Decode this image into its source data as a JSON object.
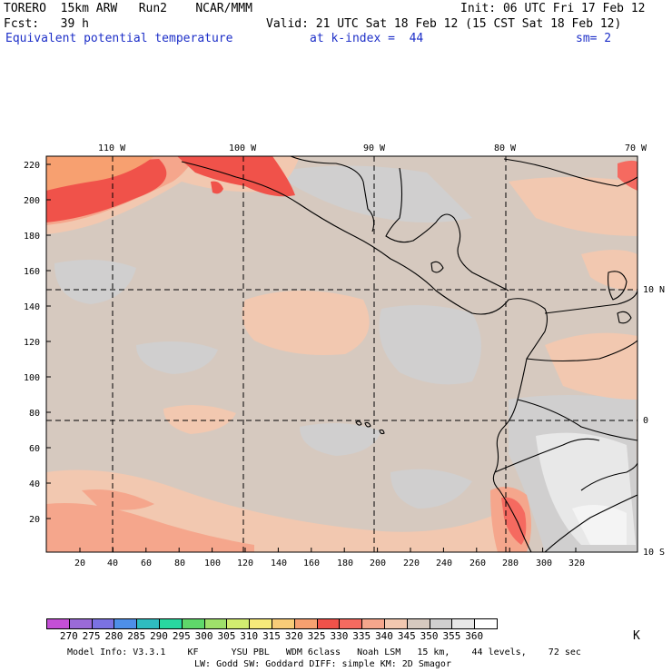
{
  "header": {
    "line1_left": "TORERO  15km ARW   Run2    NCAR/MMM",
    "line1_right": "Init: 06 UTC Fri 17 Feb 12",
    "line2_left": "Fcst:   39 h",
    "line2_right": "Valid: 21 UTC Sat 18 Feb 12 (15 CST Sat 18 Feb 12)",
    "field": "Equivalent potential temperature",
    "level": "at k-index =  44",
    "smoothing": "sm= 2"
  },
  "map": {
    "lon_labels": [
      "110 W",
      "100 W",
      "90 W",
      "80 W",
      "70 W"
    ],
    "lat_labels": [
      "10 N",
      "0",
      "10 S"
    ],
    "y_ticks": [
      "220",
      "200",
      "180",
      "160",
      "140",
      "120",
      "100",
      "80",
      "60",
      "40",
      "20"
    ],
    "x_ticks": [
      "20",
      "40",
      "60",
      "80",
      "100",
      "120",
      "140",
      "160",
      "180",
      "200",
      "220",
      "240",
      "260",
      "280",
      "300",
      "320"
    ]
  },
  "colorbar": {
    "unit": "K",
    "labels": [
      "270",
      "275",
      "280",
      "285",
      "290",
      "295",
      "300",
      "305",
      "310",
      "315",
      "320",
      "325",
      "330",
      "335",
      "340",
      "345",
      "350",
      "355",
      "360"
    ],
    "colors": [
      "#c44fd6",
      "#9a6ad8",
      "#7b72e2",
      "#4e8fe8",
      "#2fbcc0",
      "#28d8a0",
      "#5fd86a",
      "#9fe06a",
      "#d2ec70",
      "#f7ea7a",
      "#f8cc78",
      "#f7a070",
      "#f0524a",
      "#f56a60",
      "#f5a68c",
      "#f2c8b0",
      "#d6c9bf",
      "#d0cfcf",
      "#e8e8e8",
      "#ffffff"
    ]
  },
  "footer": {
    "line1": "Model Info: V3.3.1    KF      YSU PBL   WDM 6class   Noah LSM   15 km,    44 levels,    72 sec",
    "line2": "LW: Godd SW: Goddard DIFF: simple KM: 2D Smagor"
  }
}
